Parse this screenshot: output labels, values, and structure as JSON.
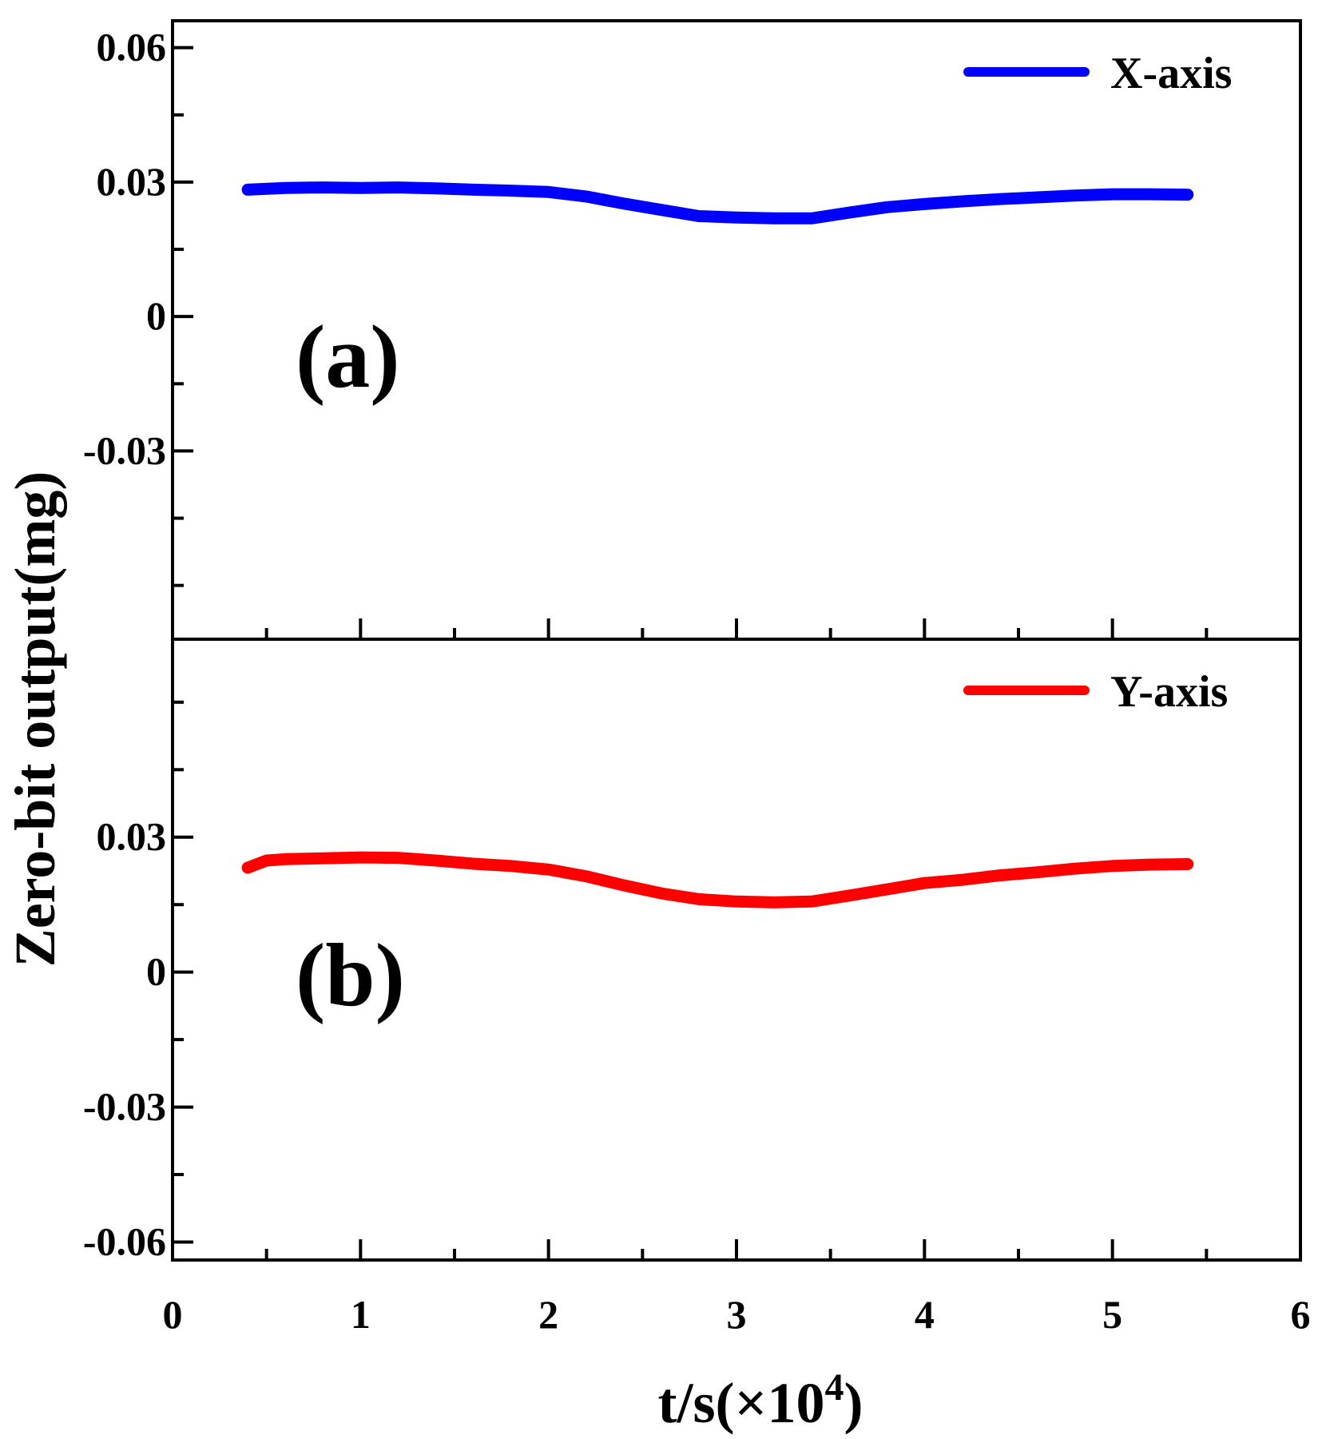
{
  "chart_data": [
    {
      "type": "line",
      "panel_label": "(a)",
      "ylim": [
        -0.072,
        0.066
      ],
      "yticks": [
        -0.03,
        0,
        0.03,
        0.06
      ],
      "ytick_labels": [
        "-0.03",
        "0",
        "0.03",
        "0.06"
      ],
      "xlim": [
        0,
        6
      ],
      "legend": "top-right",
      "series": [
        {
          "name": "X-axis",
          "color": "#0000ff",
          "x": [
            0.4,
            0.6,
            0.8,
            1.0,
            1.2,
            1.4,
            1.6,
            1.8,
            2.0,
            2.2,
            2.4,
            2.6,
            2.8,
            3.0,
            3.2,
            3.4,
            3.6,
            3.8,
            4.0,
            4.2,
            4.4,
            4.6,
            4.8,
            5.0,
            5.2,
            5.4
          ],
          "values": [
            0.0283,
            0.0287,
            0.0288,
            0.0287,
            0.0288,
            0.0286,
            0.0283,
            0.0281,
            0.0278,
            0.0268,
            0.0252,
            0.0238,
            0.0224,
            0.0221,
            0.0219,
            0.0219,
            0.0232,
            0.0244,
            0.0251,
            0.0257,
            0.0262,
            0.0266,
            0.027,
            0.0273,
            0.0273,
            0.0272
          ]
        }
      ]
    },
    {
      "type": "line",
      "panel_label": "(b)",
      "ylim": [
        -0.064,
        0.074
      ],
      "yticks": [
        -0.06,
        -0.03,
        0,
        0.03
      ],
      "ytick_labels": [
        "-0.06",
        "-0.03",
        "0",
        "0.03"
      ],
      "xlim": [
        0,
        6
      ],
      "xticks": [
        0,
        1,
        2,
        3,
        4,
        5,
        6
      ],
      "xtick_labels": [
        "0",
        "1",
        "2",
        "3",
        "4",
        "5",
        "6"
      ],
      "legend": "top-right",
      "series": [
        {
          "name": "Y-axis",
          "color": "#ff0000",
          "x": [
            0.4,
            0.5,
            0.6,
            0.8,
            1.0,
            1.2,
            1.4,
            1.6,
            1.8,
            2.0,
            2.2,
            2.4,
            2.6,
            2.8,
            3.0,
            3.2,
            3.4,
            3.6,
            3.8,
            4.0,
            4.2,
            4.4,
            4.6,
            4.8,
            5.0,
            5.2,
            5.4
          ],
          "values": [
            0.0232,
            0.0248,
            0.0251,
            0.0253,
            0.0255,
            0.0254,
            0.0248,
            0.0241,
            0.0236,
            0.0228,
            0.0213,
            0.0193,
            0.0175,
            0.0162,
            0.0157,
            0.0155,
            0.0157,
            0.017,
            0.0184,
            0.0198,
            0.0205,
            0.0215,
            0.0222,
            0.023,
            0.0236,
            0.0239,
            0.024
          ]
        }
      ]
    }
  ],
  "axis": {
    "ylabel": "Zero-bit output(mg)",
    "xlabel_base": "t/s(×10",
    "xlabel_sup": "4",
    "xlabel_close": ")"
  }
}
